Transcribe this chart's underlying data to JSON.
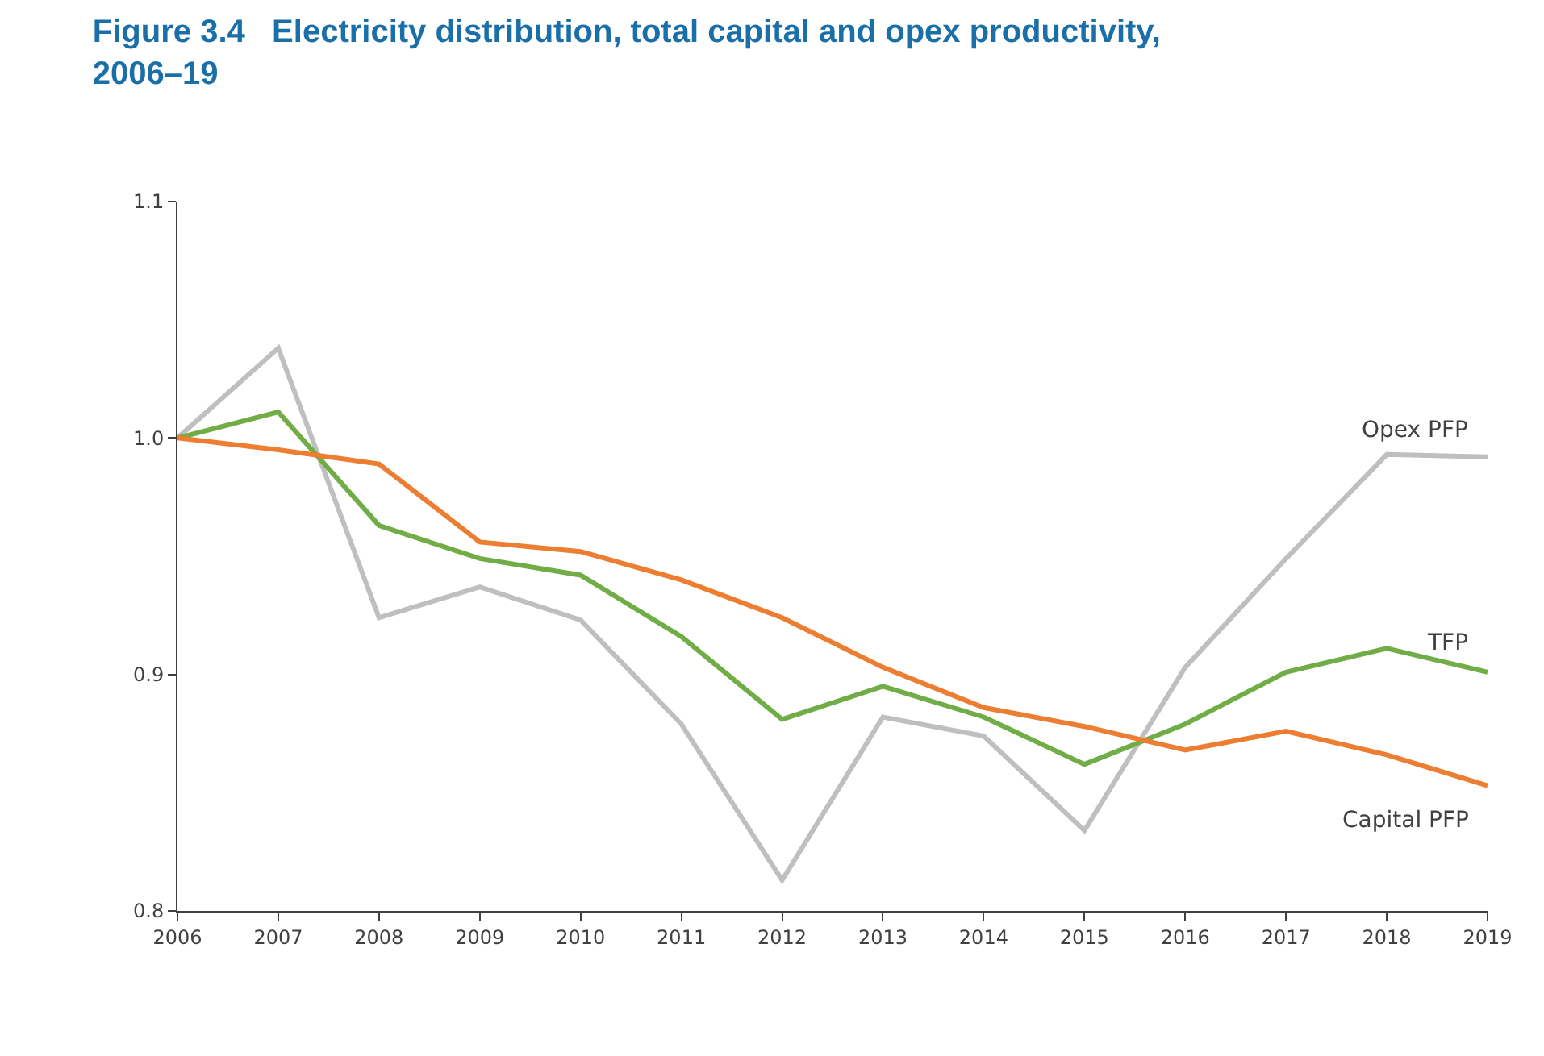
{
  "chart_data": {
    "type": "line",
    "title": "Figure 3.4   Electricity distribution, total capital and opex productivity, 2006–19",
    "x": [
      2006,
      2007,
      2008,
      2009,
      2010,
      2011,
      2012,
      2013,
      2014,
      2015,
      2016,
      2017,
      2018,
      2019
    ],
    "series": [
      {
        "name": "Opex PFP",
        "color": "#bfbfbf",
        "values": [
          1.0,
          1.038,
          0.924,
          0.937,
          0.923,
          0.879,
          0.813,
          0.882,
          0.874,
          0.834,
          0.903,
          0.949,
          0.993,
          0.992
        ]
      },
      {
        "name": "TFP",
        "color": "#70ad47",
        "values": [
          1.0,
          1.011,
          0.963,
          0.949,
          0.942,
          0.916,
          0.881,
          0.895,
          0.882,
          0.862,
          0.879,
          0.901,
          0.911,
          0.901
        ]
      },
      {
        "name": "Capital PFP",
        "color": "#ed7d31",
        "values": [
          1.0,
          0.995,
          0.989,
          0.956,
          0.952,
          0.94,
          0.924,
          0.903,
          0.886,
          0.878,
          0.868,
          0.876,
          0.866,
          0.853
        ]
      }
    ],
    "xlim": [
      2006,
      2019
    ],
    "xticks": [
      2006,
      2007,
      2008,
      2009,
      2010,
      2011,
      2012,
      2013,
      2014,
      2015,
      2016,
      2017,
      2018,
      2019
    ],
    "ylim": [
      0.8,
      1.1
    ],
    "yticks": [
      {
        "value": 0.8,
        "label": "0.8"
      },
      {
        "value": 0.9,
        "label": "0.9"
      },
      {
        "value": 1.0,
        "label": "1.0"
      },
      {
        "value": 1.1,
        "label": "1.1"
      }
    ],
    "grid": false,
    "legend": false,
    "marker": "none",
    "line_style": "solid"
  }
}
